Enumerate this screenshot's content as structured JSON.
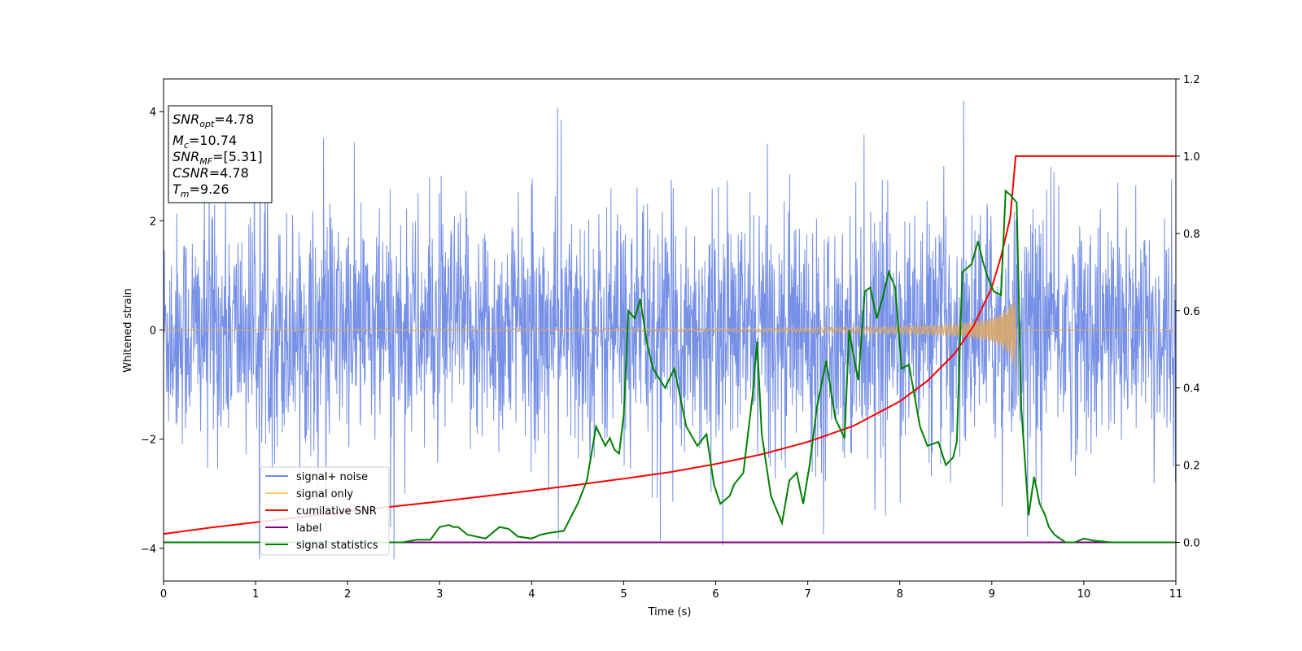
{
  "chart_data": {
    "type": "line",
    "xlabel": "Time (s)",
    "ylabel": "Whitened strain",
    "xlim": [
      0,
      11
    ],
    "ylim_left": [
      -4.6,
      4.6
    ],
    "ylim_right": [
      -0.1,
      1.2
    ],
    "x_ticks": [
      "0",
      "1",
      "2",
      "3",
      "4",
      "5",
      "6",
      "7",
      "8",
      "9",
      "10",
      "11"
    ],
    "y_left_ticks": [
      "4",
      "2",
      "0",
      "−2",
      "−4"
    ],
    "y_left_tick_values": [
      4,
      2,
      0,
      -2,
      -4
    ],
    "y_right_ticks": [
      "1.2",
      "1.0",
      "0.8",
      "0.6",
      "0.4",
      "0.2",
      "0.0"
    ],
    "y_right_tick_values": [
      1.2,
      1.0,
      0.8,
      0.6,
      0.4,
      0.2,
      0.0
    ],
    "info_box": {
      "snr_opt": {
        "base": "SNR",
        "sub": "opt",
        "value": "=4.78"
      },
      "mc": {
        "base": "M",
        "sub": "c",
        "value": "=10.74"
      },
      "snr_mf": {
        "base": "SNR",
        "sub": "MF",
        "value": "=[5.31]"
      },
      "csnr": {
        "base": "CSNR",
        "value": "=4.78"
      },
      "tm": {
        "base": "T",
        "sub": "m",
        "value": "=9.26"
      }
    },
    "legend": [
      {
        "label": "signal+ noise",
        "color": "#6f8ae6"
      },
      {
        "label": "signal only",
        "color": "#ffcc66"
      },
      {
        "label": "cumilative SNR",
        "color": "#ff0000"
      },
      {
        "label": "label",
        "color": "#800080"
      },
      {
        "label": "signal statistics",
        "color": "#008000"
      }
    ],
    "noise": {
      "amplitude": 2.2,
      "color": "#6f8ae6",
      "spike_max": 4.2
    },
    "signal_only": {
      "merger_time": 9.26,
      "peak_amplitude": 0.85,
      "color": "#d9a86b"
    },
    "cumulative_snr": {
      "axis": "right",
      "color": "#ff0000",
      "x": [
        0,
        0.5,
        1,
        1.5,
        2,
        2.5,
        3,
        3.5,
        4,
        4.5,
        5,
        5.5,
        6,
        6.5,
        7,
        7.5,
        8,
        8.3,
        8.6,
        8.8,
        9.0,
        9.1,
        9.2,
        9.26,
        9.3,
        11
      ],
      "y": [
        0.022,
        0.038,
        0.052,
        0.066,
        0.08,
        0.093,
        0.106,
        0.12,
        0.134,
        0.149,
        0.165,
        0.182,
        0.203,
        0.228,
        0.26,
        0.302,
        0.365,
        0.418,
        0.49,
        0.56,
        0.66,
        0.74,
        0.84,
        1.0,
        1.0,
        1.0
      ]
    },
    "label_line": {
      "axis": "right",
      "color": "#800080",
      "x": [
        0,
        11
      ],
      "y": [
        0.0,
        0.0
      ]
    },
    "signal_statistics": {
      "axis": "right",
      "color": "#008000",
      "x": [
        0,
        2.6,
        2.75,
        2.9,
        3.0,
        3.1,
        3.15,
        3.2,
        3.3,
        3.5,
        3.65,
        3.75,
        3.85,
        4.0,
        4.1,
        4.2,
        4.35,
        4.5,
        4.6,
        4.7,
        4.8,
        4.85,
        4.9,
        4.95,
        5.0,
        5.05,
        5.12,
        5.18,
        5.25,
        5.32,
        5.45,
        5.55,
        5.68,
        5.8,
        5.9,
        5.98,
        6.05,
        6.15,
        6.2,
        6.3,
        6.4,
        6.45,
        6.5,
        6.6,
        6.72,
        6.8,
        6.88,
        6.95,
        7.02,
        7.1,
        7.2,
        7.3,
        7.4,
        7.45,
        7.5,
        7.55,
        7.62,
        7.68,
        7.75,
        7.82,
        7.88,
        7.95,
        8.02,
        8.1,
        8.22,
        8.3,
        8.42,
        8.5,
        8.58,
        8.62,
        8.68,
        8.78,
        8.85,
        8.9,
        8.95,
        9.02,
        9.1,
        9.15,
        9.2,
        9.27,
        9.32,
        9.4,
        9.46,
        9.52,
        9.58,
        9.62,
        9.68,
        9.74,
        9.8,
        9.9,
        10.0,
        10.1,
        10.3,
        10.6,
        11
      ],
      "y": [
        0.0,
        0.0,
        0.007,
        0.007,
        0.04,
        0.045,
        0.04,
        0.04,
        0.02,
        0.01,
        0.04,
        0.035,
        0.015,
        0.01,
        0.02,
        0.025,
        0.03,
        0.1,
        0.16,
        0.3,
        0.25,
        0.27,
        0.24,
        0.23,
        0.33,
        0.6,
        0.58,
        0.63,
        0.52,
        0.45,
        0.4,
        0.45,
        0.3,
        0.25,
        0.28,
        0.15,
        0.1,
        0.12,
        0.15,
        0.18,
        0.38,
        0.52,
        0.28,
        0.12,
        0.05,
        0.16,
        0.18,
        0.1,
        0.2,
        0.35,
        0.47,
        0.32,
        0.27,
        0.55,
        0.48,
        0.42,
        0.65,
        0.66,
        0.58,
        0.64,
        0.7,
        0.66,
        0.45,
        0.46,
        0.3,
        0.25,
        0.26,
        0.2,
        0.22,
        0.26,
        0.7,
        0.72,
        0.78,
        0.73,
        0.69,
        0.65,
        0.64,
        0.91,
        0.9,
        0.88,
        0.35,
        0.07,
        0.17,
        0.1,
        0.07,
        0.04,
        0.02,
        0.01,
        0.0,
        0.0,
        0.01,
        0.005,
        0.0,
        0.0,
        0.0
      ]
    }
  }
}
